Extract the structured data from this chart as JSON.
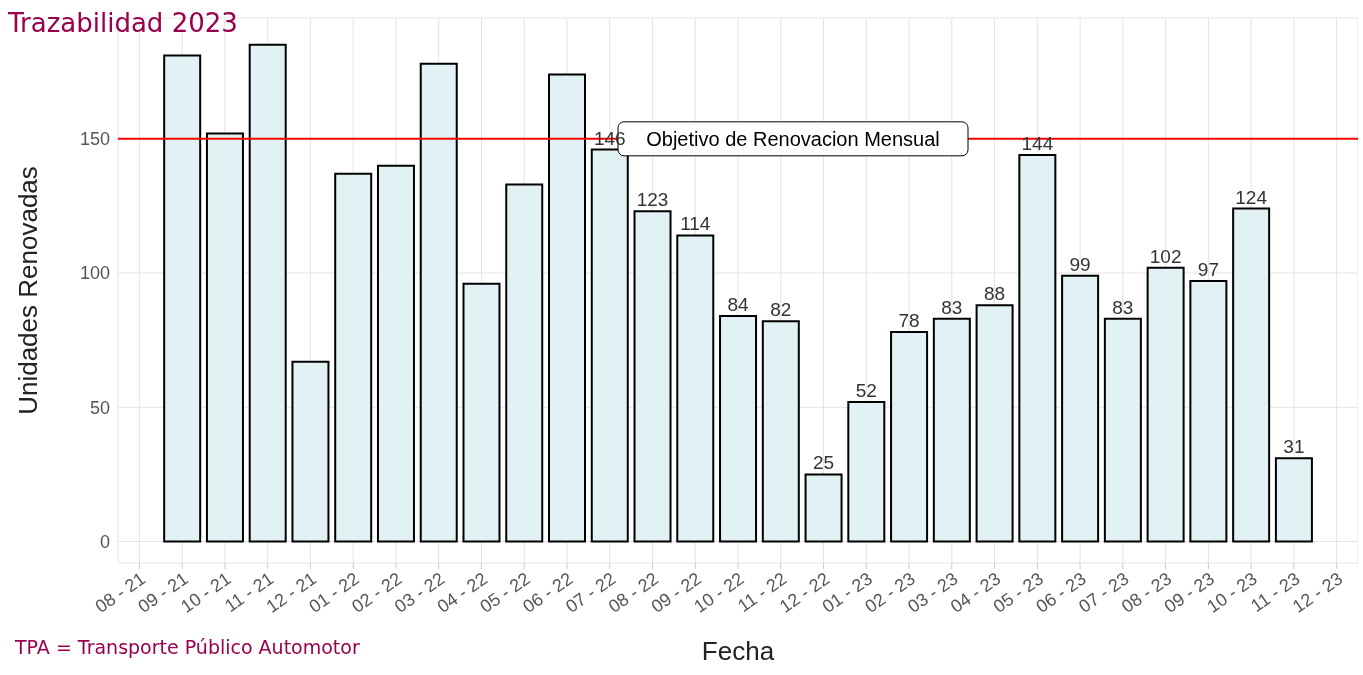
{
  "chart_data": {
    "type": "bar",
    "title": "Trazabilidad 2023",
    "xlabel": "Fecha",
    "ylabel": "Unidades Renovadas",
    "annotations": [
      "TPA = Transporte Público Automotor"
    ],
    "categories": [
      "08 - 21",
      "09 - 21",
      "10 - 21",
      "11 - 21",
      "12 - 21",
      "01 - 22",
      "02 - 22",
      "03 - 22",
      "04 - 22",
      "05 - 22",
      "06 - 22",
      "07 - 22",
      "08 - 22",
      "09 - 22",
      "10 - 22",
      "11 - 22",
      "12 - 22",
      "01 - 23",
      "02 - 23",
      "03 - 23",
      "04 - 23",
      "05 - 23",
      "06 - 23",
      "07 - 23",
      "08 - 23",
      "09 - 23",
      "10 - 23",
      "11 - 23",
      "12 - 23"
    ],
    "values": [
      null,
      181,
      152,
      185,
      67,
      137,
      140,
      178,
      96,
      133,
      174,
      146,
      123,
      114,
      84,
      82,
      25,
      52,
      78,
      83,
      88,
      144,
      99,
      83,
      102,
      97,
      124,
      31,
      null
    ],
    "value_labels": [
      null,
      null,
      null,
      null,
      null,
      null,
      null,
      null,
      null,
      null,
      null,
      "146",
      "123",
      "114",
      "84",
      "82",
      "25",
      "52",
      "78",
      "83",
      "88",
      "144",
      "99",
      "83",
      "102",
      "97",
      "124",
      "31",
      null
    ],
    "color": "#e2f1f4",
    "ylim": [
      -8,
      195
    ],
    "yticks": [
      0,
      50,
      100,
      150
    ],
    "grid": true,
    "ref_lines": [
      {
        "axis": "y",
        "value": 150,
        "label": "Objetivo de Renovacion Mensual",
        "color": "#ff0000"
      }
    ]
  }
}
